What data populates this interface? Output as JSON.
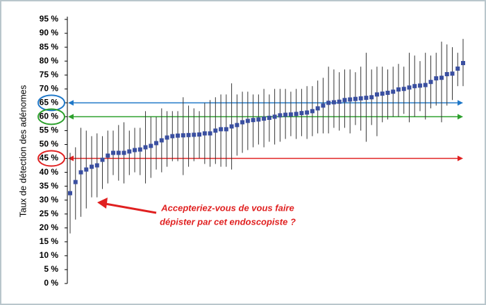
{
  "chart_data": {
    "type": "errorbar",
    "y_label": "Taux de détection des adénomes",
    "ylim": [
      0,
      95
    ],
    "yticks": [
      {
        "value": 0,
        "label": "0 %"
      },
      {
        "value": 5,
        "label": "5 %"
      },
      {
        "value": 10,
        "label": "10 %"
      },
      {
        "value": 15,
        "label": "15 %"
      },
      {
        "value": 20,
        "label": "20 %"
      },
      {
        "value": 25,
        "label": "25 %"
      },
      {
        "value": 30,
        "label": "30 %"
      },
      {
        "value": 35,
        "label": "35 %"
      },
      {
        "value": 40,
        "label": "40 %"
      },
      {
        "value": 45,
        "label": "45 %"
      },
      {
        "value": 50,
        "label": "50 %"
      },
      {
        "value": 55,
        "label": "55 %"
      },
      {
        "value": 60,
        "label": "60 %"
      },
      {
        "value": 65,
        "label": "65 %"
      },
      {
        "value": 70,
        "label": "70 %"
      },
      {
        "value": 75,
        "label": "75 %"
      },
      {
        "value": 80,
        "label": "80 %"
      },
      {
        "value": 85,
        "label": "85 %"
      },
      {
        "value": 90,
        "label": "90 %"
      },
      {
        "value": 95,
        "label": "95 %"
      }
    ],
    "color": "#3a4fa0",
    "values": [
      32.5,
      36.5,
      40,
      41,
      42,
      42.5,
      44.5,
      46,
      47,
      47,
      47,
      47.5,
      48,
      48.2,
      49,
      49.5,
      50.5,
      51.5,
      52.5,
      53,
      53.2,
      53.3,
      53.4,
      53.5,
      53.6,
      54,
      54,
      55,
      55.5,
      55.5,
      56.5,
      57,
      58,
      58.5,
      58.8,
      59,
      59.3,
      59.6,
      60,
      60.5,
      60.7,
      60.8,
      61,
      61.3,
      61.5,
      62,
      63,
      64,
      65,
      65.2,
      65.4,
      66,
      66.2,
      66.4,
      66.6,
      66.8,
      67,
      68,
      68.3,
      68.6,
      69,
      69.8,
      70,
      70.5,
      71,
      71.2,
      71.4,
      72.5,
      73.8,
      74,
      75.3,
      75.5,
      77.3,
      79.3
    ],
    "lower": [
      18,
      23,
      24,
      27,
      31,
      31,
      34,
      36,
      39,
      37,
      36,
      39,
      40,
      39,
      36,
      38,
      41,
      40,
      42,
      44,
      44,
      39,
      42,
      44,
      45,
      43,
      42,
      43,
      42,
      42,
      41,
      46,
      47,
      48,
      49,
      50,
      49,
      51,
      50,
      51,
      52,
      53,
      52,
      53,
      52,
      53,
      54,
      54,
      54,
      56,
      55,
      56,
      54,
      57,
      55,
      51,
      57,
      53,
      58,
      59,
      60,
      60,
      61,
      58,
      60,
      62,
      59,
      63,
      64,
      58,
      64,
      66,
      71,
      71
    ],
    "upper": [
      47,
      49,
      56,
      55,
      53,
      54,
      53,
      55,
      55,
      57,
      58,
      55,
      56,
      56,
      62,
      60,
      60,
      63,
      62,
      62,
      62,
      67,
      64,
      63,
      62,
      65,
      66,
      67,
      68,
      68,
      72,
      68,
      69,
      69,
      68,
      68,
      70,
      68,
      70,
      70,
      70,
      69,
      70,
      70,
      71,
      71,
      73,
      74,
      78,
      77,
      76,
      77,
      77,
      76,
      78,
      83,
      77,
      78,
      78,
      77,
      78,
      79,
      78,
      83,
      82,
      80,
      83,
      82,
      83,
      87,
      86,
      85,
      83,
      88
    ],
    "ref_lines": [
      {
        "value": 65,
        "color": "#1f78c8"
      },
      {
        "value": 60,
        "color": "#2ca02c"
      },
      {
        "value": 45,
        "color": "#e02020"
      }
    ],
    "annotation": [
      "Accepteriez-vous de vous faire",
      "dépister par cet endoscopiste ?"
    ],
    "annotation_color": "#e02020"
  }
}
